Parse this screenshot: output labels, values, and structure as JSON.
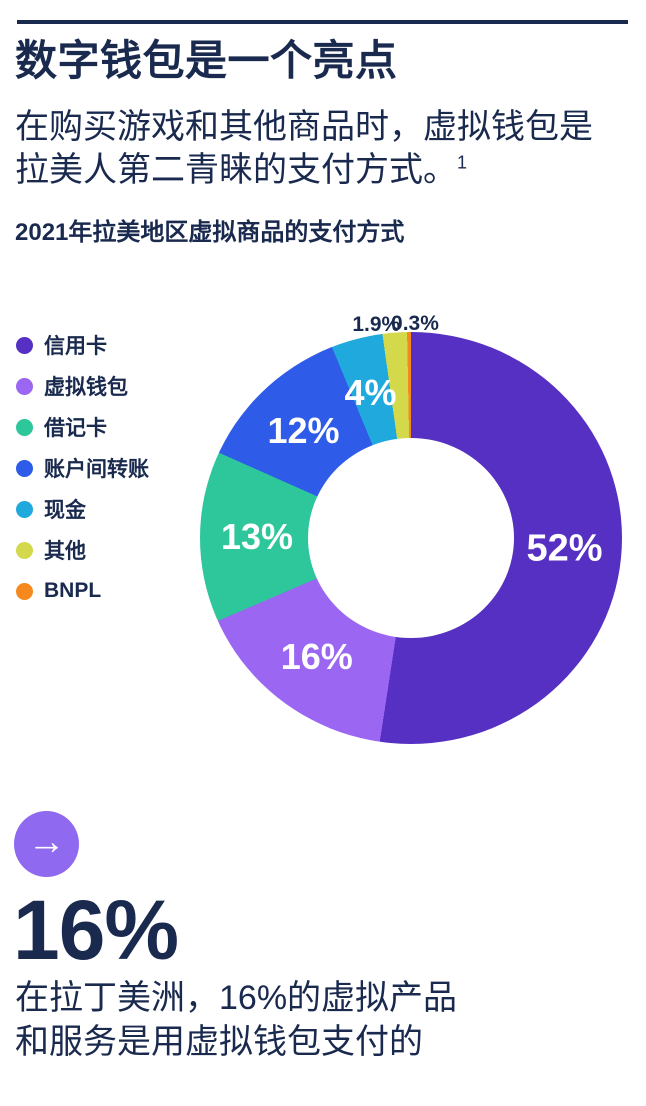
{
  "page": {
    "background_color": "#FFFFFF",
    "text_color": "#1A2A4F"
  },
  "header": {
    "title": "数字钱包是一个亮点",
    "subtitle_line1": "在购买游戏和其他商品时，虚拟钱包是",
    "subtitle_line2": "拉美人第二青睐的支付方式。",
    "footnote_marker": "1"
  },
  "chart_data": {
    "type": "pie",
    "variant": "donut",
    "title": "2021年拉美地区虚拟商品的支付方式",
    "legend_position": "left",
    "direction": "clockwise",
    "start_angle_deg": 0,
    "categories": [
      "信用卡",
      "虚拟钱包",
      "借记卡",
      "账户间转账",
      "现金",
      "其他",
      "BNPL"
    ],
    "values": [
      52,
      16,
      13,
      12,
      4,
      1.9,
      0.3
    ],
    "slices": [
      {
        "label": "信用卡",
        "value": 52,
        "display": "52%",
        "color": "#5530C2",
        "label_placement": "inside"
      },
      {
        "label": "虚拟钱包",
        "value": 16,
        "display": "16%",
        "color": "#9A66F2",
        "label_placement": "inside"
      },
      {
        "label": "借记卡",
        "value": 13,
        "display": "13%",
        "color": "#2EC69B",
        "label_placement": "inside"
      },
      {
        "label": "账户间转账",
        "value": 12,
        "display": "12%",
        "color": "#2E5BE8",
        "label_placement": "inside"
      },
      {
        "label": "现金",
        "value": 4,
        "display": "4%",
        "color": "#1FA9DC",
        "label_placement": "inside"
      },
      {
        "label": "其他",
        "value": 1.9,
        "display": "1.9%",
        "color": "#D4D94C",
        "label_placement": "outside"
      },
      {
        "label": "BNPL",
        "value": 0.3,
        "display": "0.3%",
        "color": "#F6891E",
        "label_placement": "outside"
      }
    ]
  },
  "callout": {
    "arrow_glyph": "→",
    "badge_color": "#8F69F0",
    "stat": "16%",
    "line1": "在拉丁美洲，16%的虚拟产品",
    "line2": "和服务是用虚拟钱包支付的"
  }
}
